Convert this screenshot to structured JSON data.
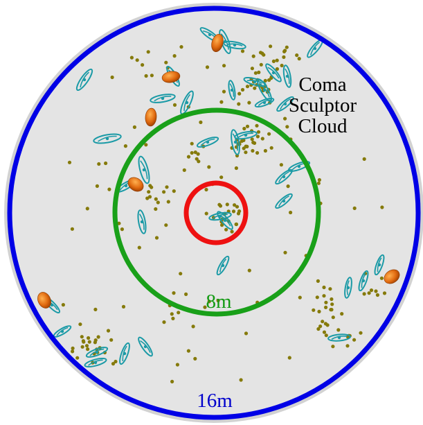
{
  "labels": {
    "group_name_line1": "Coma",
    "group_name_line2": "Sculptor",
    "group_name_line3": "Cloud",
    "inner_radius_label": "8m",
    "outer_radius_label": "16m"
  },
  "colors": {
    "background_disk": "#e4e4e4",
    "disk_edge": "#d2d2d2",
    "outer_ring": "#0000e6",
    "middle_ring": "#19a019",
    "inner_ring": "#ee1111",
    "dwarf_dot": "#857a0b",
    "spiral_galaxy": "#1a9aa6",
    "elliptical_galaxy": "#e06a10",
    "label_text": "#000000",
    "label_8m": "#139a13",
    "label_16m": "#0000cc"
  },
  "legend_icons": [
    "dwarf-galaxy-dot",
    "spiral-galaxy-icon",
    "elliptical-galaxy-icon"
  ]
}
